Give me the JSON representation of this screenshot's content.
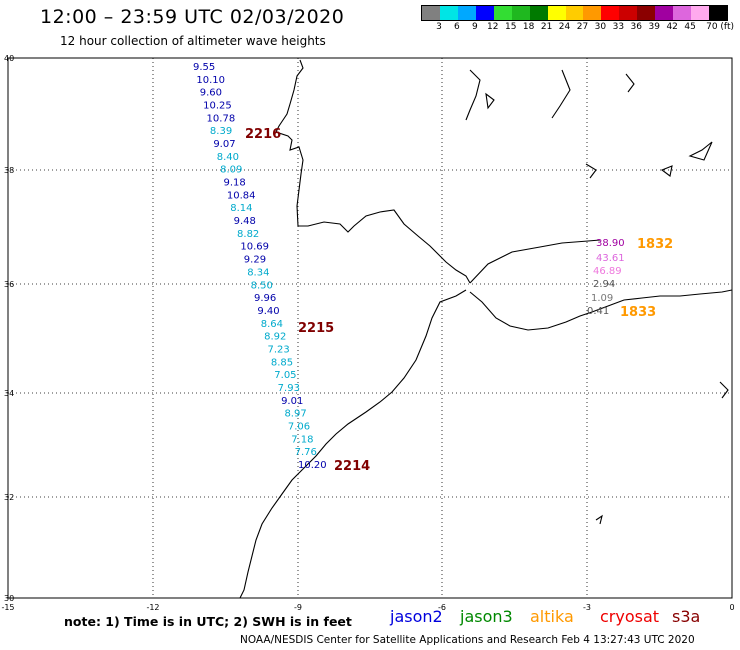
{
  "header": {
    "title": "12:00 – 23:59 UTC 02/03/2020",
    "subtitle": "12 hour collection of altimeter wave heights"
  },
  "color_scale": {
    "labels": [
      "3",
      "6",
      "9",
      "12",
      "15",
      "18",
      "21",
      "24",
      "27",
      "30",
      "33",
      "36",
      "39",
      "42",
      "45",
      "70 (ft)"
    ],
    "colors": [
      "#808080",
      "#00e5e5",
      "#00a8ff",
      "#0000ff",
      "#33dd33",
      "#1fb81f",
      "#007a00",
      "#ffff00",
      "#ffcc00",
      "#ff9900",
      "#ff0000",
      "#cc0000",
      "#8b0000",
      "#a000a0",
      "#dd66dd",
      "#ffaaee",
      "#000000"
    ]
  },
  "map": {
    "lat_ticks": [
      "40",
      "38",
      "36",
      "34",
      "32",
      "30"
    ],
    "lon_ticks": [
      "-15",
      "-12",
      "-9",
      "-6",
      "-3",
      "0"
    ],
    "track_labels": [
      {
        "text": "2216",
        "color": "#800000"
      },
      {
        "text": "2215",
        "color": "#800000"
      },
      {
        "text": "2214",
        "color": "#800000"
      },
      {
        "text": "1832",
        "color": "#ff9900"
      },
      {
        "text": "1833",
        "color": "#ff9900"
      }
    ],
    "jason_track": [
      {
        "v": "9.55",
        "c": "#0000aa"
      },
      {
        "v": "10.10",
        "c": "#0000aa"
      },
      {
        "v": "9.60",
        "c": "#0000aa"
      },
      {
        "v": "10.25",
        "c": "#0000aa"
      },
      {
        "v": "10.78",
        "c": "#0000aa"
      },
      {
        "v": "8.39",
        "c": "#00aacc"
      },
      {
        "v": "9.07",
        "c": "#0000aa"
      },
      {
        "v": "8.40",
        "c": "#00aacc"
      },
      {
        "v": "8.09",
        "c": "#00aacc"
      },
      {
        "v": "9.18",
        "c": "#0000aa"
      },
      {
        "v": "10.84",
        "c": "#0000aa"
      },
      {
        "v": "8.14",
        "c": "#00aacc"
      },
      {
        "v": "9.48",
        "c": "#0000aa"
      },
      {
        "v": "8.82",
        "c": "#00aacc"
      },
      {
        "v": "10.69",
        "c": "#0000aa"
      },
      {
        "v": "9.29",
        "c": "#0000aa"
      },
      {
        "v": "8.34",
        "c": "#00aacc"
      },
      {
        "v": "8.50",
        "c": "#00aacc"
      },
      {
        "v": "9.96",
        "c": "#0000aa"
      },
      {
        "v": "9.40",
        "c": "#0000aa"
      },
      {
        "v": "8.64",
        "c": "#00aacc"
      },
      {
        "v": "8.92",
        "c": "#00aacc"
      },
      {
        "v": "7.23",
        "c": "#00aacc"
      },
      {
        "v": "8.85",
        "c": "#00aacc"
      },
      {
        "v": "7.05",
        "c": "#00aacc"
      },
      {
        "v": "7.93",
        "c": "#00aacc"
      },
      {
        "v": "9.01",
        "c": "#0000aa"
      },
      {
        "v": "8.97",
        "c": "#00aacc"
      },
      {
        "v": "7.06",
        "c": "#00aacc"
      },
      {
        "v": "7.18",
        "c": "#00aacc"
      },
      {
        "v": "7.76",
        "c": "#00aacc"
      },
      {
        "v": "10.20",
        "c": "#0000aa"
      }
    ],
    "med_track": [
      {
        "v": "38.90",
        "c": "#a000a0"
      },
      {
        "v": "43.61",
        "c": "#dd66dd"
      },
      {
        "v": "46.89",
        "c": "#ee77dd"
      },
      {
        "v": "2.94",
        "c": "#555555"
      },
      {
        "v": "1.09",
        "c": "#777777"
      },
      {
        "v": "0.41",
        "c": "#555555"
      }
    ]
  },
  "footer": {
    "note": "note: 1) Time is in UTC; 2) SWH is in feet",
    "satellites": [
      {
        "name": "jason2",
        "color": "#0000dd"
      },
      {
        "name": "jason3",
        "color": "#008800"
      },
      {
        "name": "altika",
        "color": "#ff9900"
      },
      {
        "name": "cryosat",
        "color": "#ee0000"
      },
      {
        "name": "s3a",
        "color": "#880000"
      }
    ],
    "credit": "NOAA/NESDIS Center for Satellite Applications and Research    Feb  4 13:27:43 UTC 2020"
  }
}
